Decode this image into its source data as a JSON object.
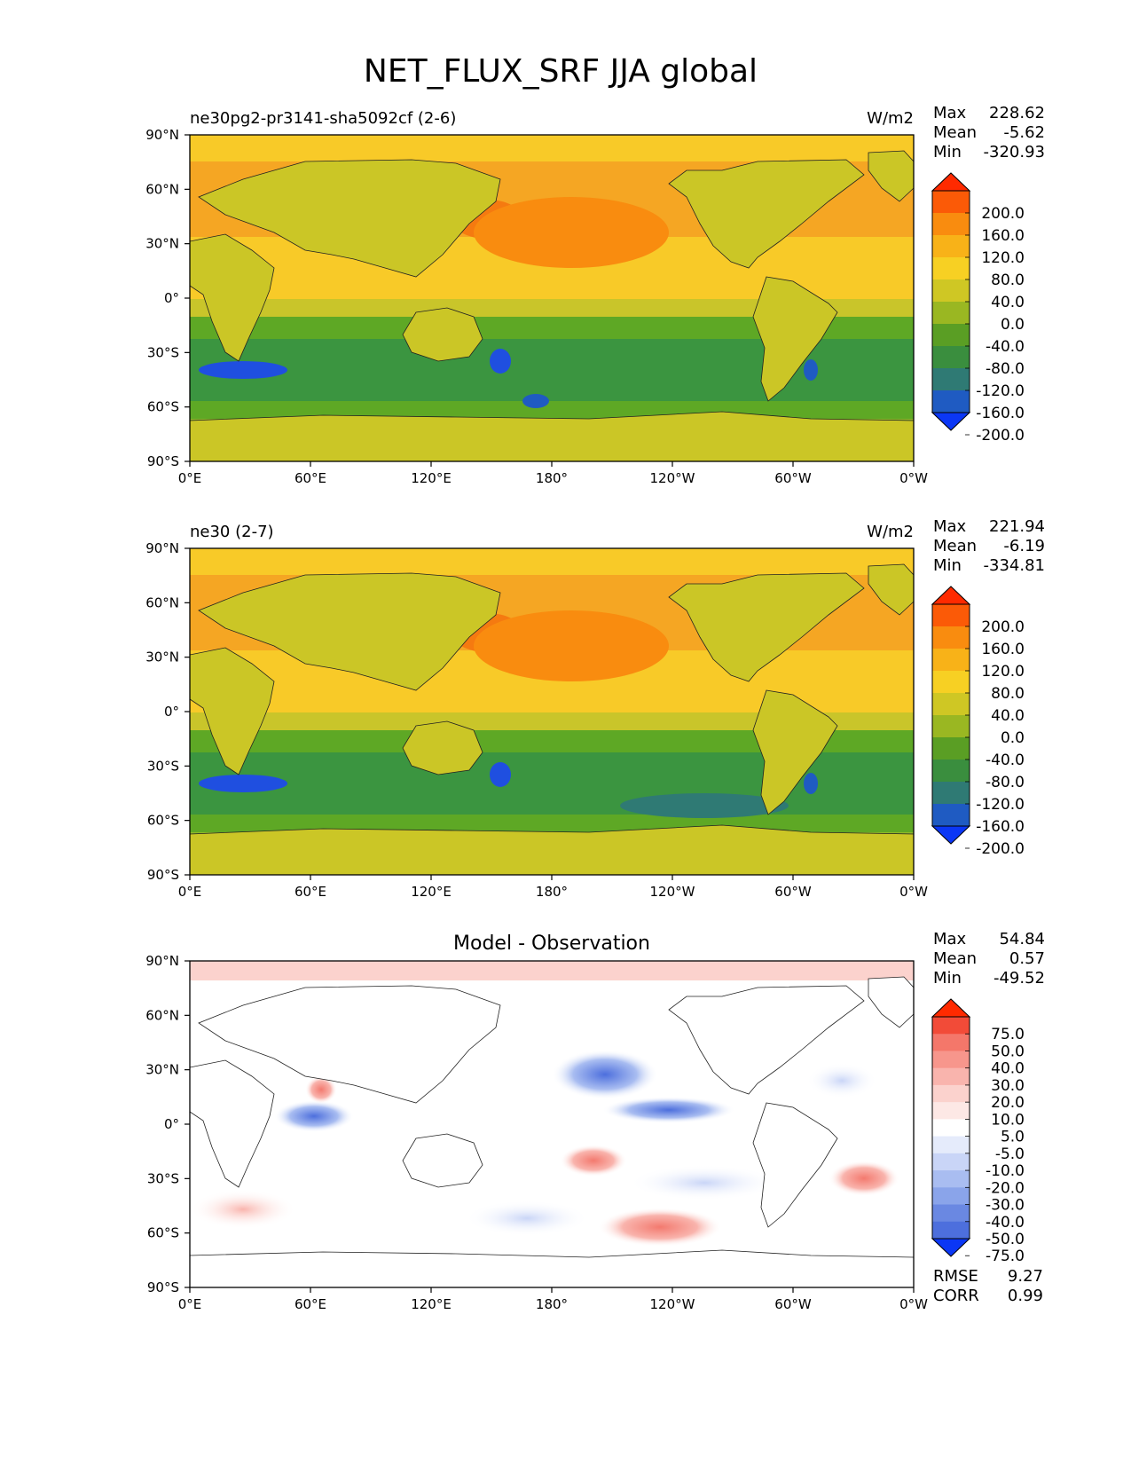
{
  "title": "NET_FLUX_SRF JJA global",
  "x_ticks": [
    "0°E",
    "60°E",
    "120°E",
    "180°",
    "120°W",
    "60°W",
    "0°W"
  ],
  "y_ticks": [
    "90°N",
    "60°N",
    "30°N",
    "0°",
    "30°S",
    "60°S",
    "90°S"
  ],
  "panels": [
    {
      "label": "ne30pg2-pr3141-sha5092cf (2-6)",
      "units": "W/m2",
      "stats": [
        {
          "label": "Max",
          "value": "228.62"
        },
        {
          "label": "Mean",
          "value": "-5.62"
        },
        {
          "label": "Min",
          "value": "-320.93"
        }
      ],
      "colorbar_labels": [
        "200.0",
        "160.0",
        "120.0",
        "80.0",
        "40.0",
        "0.0",
        "-40.0",
        "-80.0",
        "-120.0",
        "-160.0",
        "-200.0"
      ],
      "colors": {
        "ocean_north": "#f5a623",
        "band_n": "#f8ca28",
        "ocean_tropics": "#c9c52a",
        "band_s": "#5ea825",
        "southern": "#3b9540",
        "polar_s": "#8fb828",
        "land": "#cbc626",
        "hot": "#f57a10",
        "cold": "#1f4fe0"
      }
    },
    {
      "label": "ne30 (2-7)",
      "units": "W/m2",
      "stats": [
        {
          "label": "Max",
          "value": "221.94"
        },
        {
          "label": "Mean",
          "value": "-6.19"
        },
        {
          "label": "Min",
          "value": "-334.81"
        }
      ],
      "colorbar_labels": [
        "200.0",
        "160.0",
        "120.0",
        "80.0",
        "40.0",
        "0.0",
        "-40.0",
        "-80.0",
        "-120.0",
        "-160.0",
        "-200.0"
      ],
      "colors": {
        "ocean_north": "#f5a623",
        "band_n": "#f8ca28",
        "ocean_tropics": "#c9c52a",
        "band_s": "#5ea825",
        "southern": "#3b9540",
        "polar_s": "#8fb828",
        "land": "#cbc626",
        "hot": "#f57a10",
        "cold": "#1f4fe0"
      }
    },
    {
      "title": "Model - Observation",
      "stats": [
        {
          "label": "Max",
          "value": "54.84"
        },
        {
          "label": "Mean",
          "value": "0.57"
        },
        {
          "label": "Min",
          "value": "-49.52"
        }
      ],
      "colorbar_labels": [
        "75.0",
        "50.0",
        "40.0",
        "30.0",
        "20.0",
        "10.0",
        "5.0",
        "-5.0",
        "-10.0",
        "-20.0",
        "-30.0",
        "-40.0",
        "-50.0",
        "-75.0"
      ],
      "metrics": [
        {
          "label": "RMSE",
          "value": "9.27"
        },
        {
          "label": "CORR",
          "value": "0.99"
        }
      ]
    }
  ],
  "colorbars": {
    "main": [
      "#ff2a00",
      "#fb5a07",
      "#f98c0f",
      "#f8b218",
      "#f7d023",
      "#cfc724",
      "#9ab722",
      "#5a9e24",
      "#3a8e3e",
      "#2f7a74",
      "#1f5bc2",
      "#0b37f5"
    ],
    "diff": [
      "#ff2a00",
      "#f24b38",
      "#f4776a",
      "#f7968c",
      "#f9b4ad",
      "#fbd2cd",
      "#fde8e5",
      "#ffffff",
      "#e5ebfb",
      "#c9d5f7",
      "#a9bdf1",
      "#8aa4ea",
      "#6a88e2",
      "#4d6fdd",
      "#0b37f5"
    ]
  }
}
